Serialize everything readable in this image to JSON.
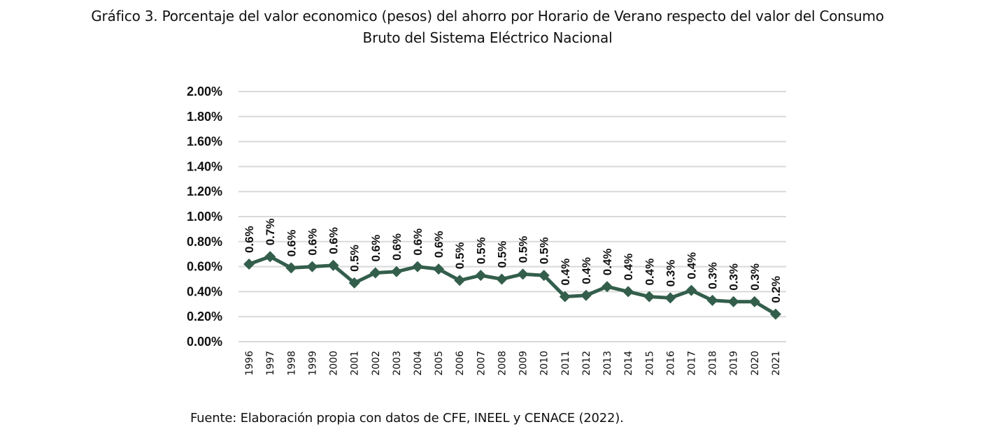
{
  "title_line1": "Gráfico 3. Porcentaje del valor economico (pesos) del ahorro por Horario de Verano respecto del valor del Consumo",
  "title_line2": "Bruto del Sistema Eléctrico Nacional",
  "source": "Fuente: Elaboración propia con datos de CFE, INEEL y CENACE (2022).",
  "chart_data": {
    "type": "line",
    "title": "Gráfico 3. Porcentaje del valor economico (pesos) del ahorro por Horario de Verano respecto del valor del Consumo Bruto del Sistema Eléctrico Nacional",
    "xlabel": "",
    "ylabel": "",
    "ylim": [
      0,
      2.0
    ],
    "yticks": [
      0,
      0.2,
      0.4,
      0.6,
      0.8,
      1.0,
      1.2,
      1.4,
      1.6,
      1.8,
      2.0
    ],
    "ytick_labels": [
      "0.00%",
      "0.20%",
      "0.40%",
      "0.60%",
      "0.80%",
      "1.00%",
      "1.20%",
      "1.40%",
      "1.60%",
      "1.80%",
      "2.00%"
    ],
    "grid": true,
    "legend": "none",
    "line_color": "#335e4c",
    "categories": [
      "1996",
      "1997",
      "1998",
      "1999",
      "2000",
      "2001",
      "2002",
      "2003",
      "2004",
      "2005",
      "2006",
      "2007",
      "2008",
      "2009",
      "2010",
      "2011",
      "2012",
      "2013",
      "2014",
      "2015",
      "2016",
      "2017",
      "2018",
      "2019",
      "2020",
      "2021"
    ],
    "series": [
      {
        "name": "Porcentaje",
        "values": [
          0.62,
          0.68,
          0.59,
          0.6,
          0.61,
          0.47,
          0.55,
          0.56,
          0.6,
          0.58,
          0.49,
          0.53,
          0.5,
          0.54,
          0.53,
          0.36,
          0.37,
          0.44,
          0.4,
          0.36,
          0.35,
          0.41,
          0.33,
          0.32,
          0.32,
          0.22
        ],
        "data_labels": [
          "0.6%",
          "0.7%",
          "0.6%",
          "0.6%",
          "0.6%",
          "0.5%",
          "0.6%",
          "0.6%",
          "0.6%",
          "0.6%",
          "0.5%",
          "0.5%",
          "0.5%",
          "0.5%",
          "0.5%",
          "0.4%",
          "0.4%",
          "0.4%",
          "0.4%",
          "0.4%",
          "0.3%",
          "0.4%",
          "0.3%",
          "0.3%",
          "0.3%",
          "0.2%"
        ]
      }
    ]
  }
}
